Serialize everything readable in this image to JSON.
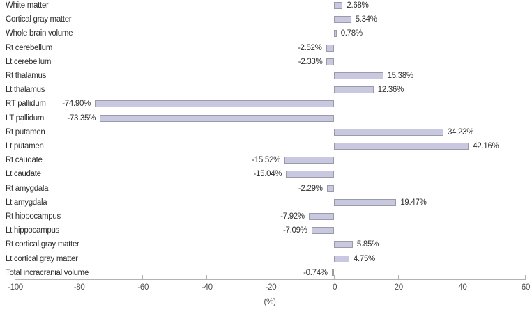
{
  "chart_data": {
    "type": "bar",
    "orientation": "horizontal",
    "title": "",
    "xlabel": "(%)",
    "ylabel": "",
    "xlim": [
      -100,
      60
    ],
    "x_ticks": [
      -100,
      -80,
      -60,
      -40,
      -20,
      0,
      20,
      40,
      60
    ],
    "grid": false,
    "legend": false,
    "bar_color": "#c8c9e1",
    "bar_border_color": "#9a9aa8",
    "text_color": "#2e2e2e",
    "axis_color": "#b2b2b2",
    "categories": [
      "White matter",
      "Cortical gray matter",
      "Whole brain volume",
      "Rt cerebellum",
      "Lt cerebellum",
      "Rt thalamus",
      "Lt thalamus",
      "RT pallidum",
      "LT pallidum",
      "Rt putamen",
      "Lt putamen",
      "Rt caudate",
      "Lt caudate",
      "Rt amygdala",
      "Lt amygdala",
      "Rt hippocampus",
      "Lt hippocampus",
      "Rt cortical gray matter",
      "Lt cortical gray matter",
      "Total incracranial volume"
    ],
    "values": [
      2.68,
      5.34,
      0.78,
      -2.52,
      -2.33,
      15.38,
      12.36,
      -74.9,
      -73.35,
      34.23,
      42.16,
      -15.52,
      -15.04,
      -2.29,
      19.47,
      -7.92,
      -7.09,
      5.85,
      4.75,
      -0.74
    ],
    "value_labels": [
      "2.68%",
      "5.34%",
      "0.78%",
      "-2.52%",
      "-2.33%",
      "15.38%",
      "12.36%",
      "-74.90%",
      "-73.35%",
      "34.23%",
      "42.16%",
      "-15.52%",
      "-15.04%",
      "-2.29%",
      "19.47%",
      "-7.92%",
      "-7.09%",
      "5.85%",
      "4.75%",
      "-0.74%"
    ]
  }
}
